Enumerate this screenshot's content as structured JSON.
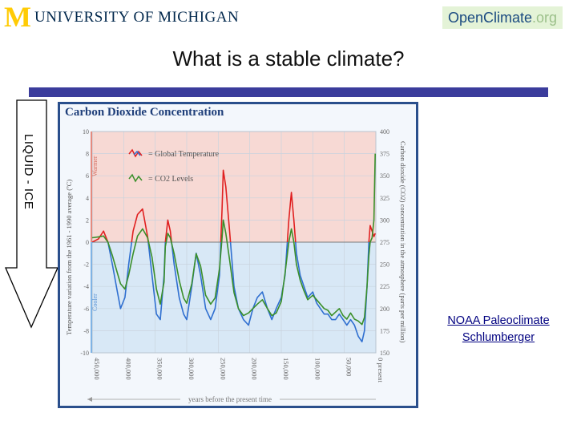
{
  "header": {
    "logo_mark": "M",
    "university_name": "UNIVERSITY OF MICHIGAN",
    "openclimate_prefix": "OpenClimate",
    "openclimate_suffix": ".org"
  },
  "slide": {
    "title": "What is a stable climate?",
    "arrow_label": "LIQUID - ICE"
  },
  "credits": [
    {
      "label": "NOAA Paleoclimate"
    },
    {
      "label": "Schlumberger"
    }
  ],
  "colors": {
    "brand_maize": "#ffcb05",
    "brand_blue": "#00274c",
    "title_rule": "#3b3c9c",
    "temperature": "#e02020",
    "co2": "#3a8f2a",
    "cool_blue": "#2f6fd0",
    "warm_band": "#f7d9d4",
    "cool_band": "#d8e8f6"
  },
  "chart_data": {
    "type": "line",
    "title": "Carbon Dioxide Concentration",
    "xlabel": "years before the present time",
    "ylabel_left": "Temperature variation from the 1961 - 1990 average (ºC)",
    "ylabel_right": "Carbon dioxide (CO2) concentration in the atmosphere (parts per million)",
    "xlim": [
      450000,
      0
    ],
    "ylim_left": [
      -10,
      10
    ],
    "ylim_right": [
      150,
      400
    ],
    "left_ticks": [
      "10",
      "8",
      "6",
      "4",
      "2",
      "0",
      "-2",
      "-4",
      "-6",
      "-8",
      "-10"
    ],
    "right_ticks": [
      "400",
      "375",
      "350",
      "325",
      "300",
      "275",
      "250",
      "225",
      "200",
      "175",
      "150"
    ],
    "x_ticks": [
      "450,000",
      "400,000",
      "350,000",
      "300,000",
      "250,000",
      "200,000",
      "150,000",
      "100,000",
      "50,000",
      "0 present"
    ],
    "band_labels": {
      "warm": "Warmer",
      "cool": "Cooler"
    },
    "legend": [
      {
        "name": "= Global Temperature"
      },
      {
        "name": "= CO2 Levels"
      }
    ],
    "series": [
      {
        "name": "Global Temperature",
        "unit": "ºC",
        "x": [
          450000,
          440000,
          432000,
          425000,
          418000,
          410000,
          405000,
          398000,
          392000,
          385000,
          378000,
          370000,
          362000,
          355000,
          348000,
          342000,
          336000,
          334000,
          330000,
          326000,
          320000,
          312000,
          305000,
          300000,
          292000,
          285000,
          278000,
          270000,
          262000,
          255000,
          248000,
          244000,
          242000,
          238000,
          232000,
          225000,
          218000,
          210000,
          202000,
          195000,
          188000,
          180000,
          172000,
          165000,
          158000,
          150000,
          144000,
          138000,
          134000,
          130000,
          126000,
          120000,
          114000,
          108000,
          100000,
          94000,
          88000,
          82000,
          76000,
          70000,
          64000,
          58000,
          52000,
          46000,
          40000,
          34000,
          28000,
          22000,
          18000,
          14000,
          11000,
          9000,
          6000,
          3000,
          1000
        ],
        "y": [
          0,
          0.3,
          1,
          0,
          -2,
          -4.5,
          -6,
          -5,
          -2,
          1,
          2.5,
          3,
          0.5,
          -3,
          -6.5,
          -7,
          -3,
          0,
          2,
          1,
          -2,
          -5,
          -6.5,
          -7,
          -4,
          -1,
          -3,
          -6,
          -7,
          -6,
          -3,
          3,
          6.5,
          5,
          1,
          -4,
          -6,
          -7,
          -7.5,
          -6,
          -5,
          -4.5,
          -6,
          -7,
          -6,
          -5,
          -3,
          2,
          4.5,
          2,
          -1,
          -3,
          -4,
          -5,
          -4.5,
          -5.5,
          -6,
          -6.5,
          -6.5,
          -7,
          -7,
          -6.5,
          -7,
          -7.5,
          -7,
          -7.5,
          -8.5,
          -9,
          -8,
          -4,
          0,
          1.5,
          1,
          0.5,
          0.8
        ]
      },
      {
        "name": "CO2 Levels",
        "unit": "ppm",
        "x": [
          450000,
          440000,
          432000,
          425000,
          418000,
          410000,
          405000,
          398000,
          392000,
          385000,
          378000,
          370000,
          362000,
          355000,
          348000,
          342000,
          336000,
          334000,
          330000,
          326000,
          320000,
          312000,
          305000,
          300000,
          292000,
          285000,
          278000,
          270000,
          262000,
          255000,
          248000,
          244000,
          242000,
          238000,
          232000,
          225000,
          218000,
          210000,
          202000,
          195000,
          188000,
          180000,
          172000,
          165000,
          158000,
          150000,
          144000,
          138000,
          134000,
          130000,
          126000,
          120000,
          114000,
          108000,
          100000,
          94000,
          88000,
          82000,
          76000,
          70000,
          64000,
          58000,
          52000,
          46000,
          40000,
          34000,
          28000,
          22000,
          18000,
          14000,
          11000,
          9000,
          6000,
          3000,
          1000
        ],
        "y": [
          280,
          281,
          282,
          275,
          260,
          240,
          228,
          222,
          238,
          262,
          282,
          290,
          280,
          258,
          222,
          205,
          230,
          270,
          285,
          280,
          262,
          232,
          212,
          206,
          228,
          262,
          248,
          215,
          205,
          212,
          245,
          280,
          300,
          285,
          255,
          218,
          200,
          192,
          195,
          200,
          205,
          210,
          200,
          192,
          195,
          208,
          240,
          275,
          290,
          275,
          250,
          232,
          220,
          210,
          215,
          210,
          205,
          200,
          198,
          192,
          196,
          200,
          192,
          188,
          195,
          188,
          186,
          182,
          190,
          225,
          260,
          275,
          280,
          300,
          375
        ]
      }
    ]
  }
}
